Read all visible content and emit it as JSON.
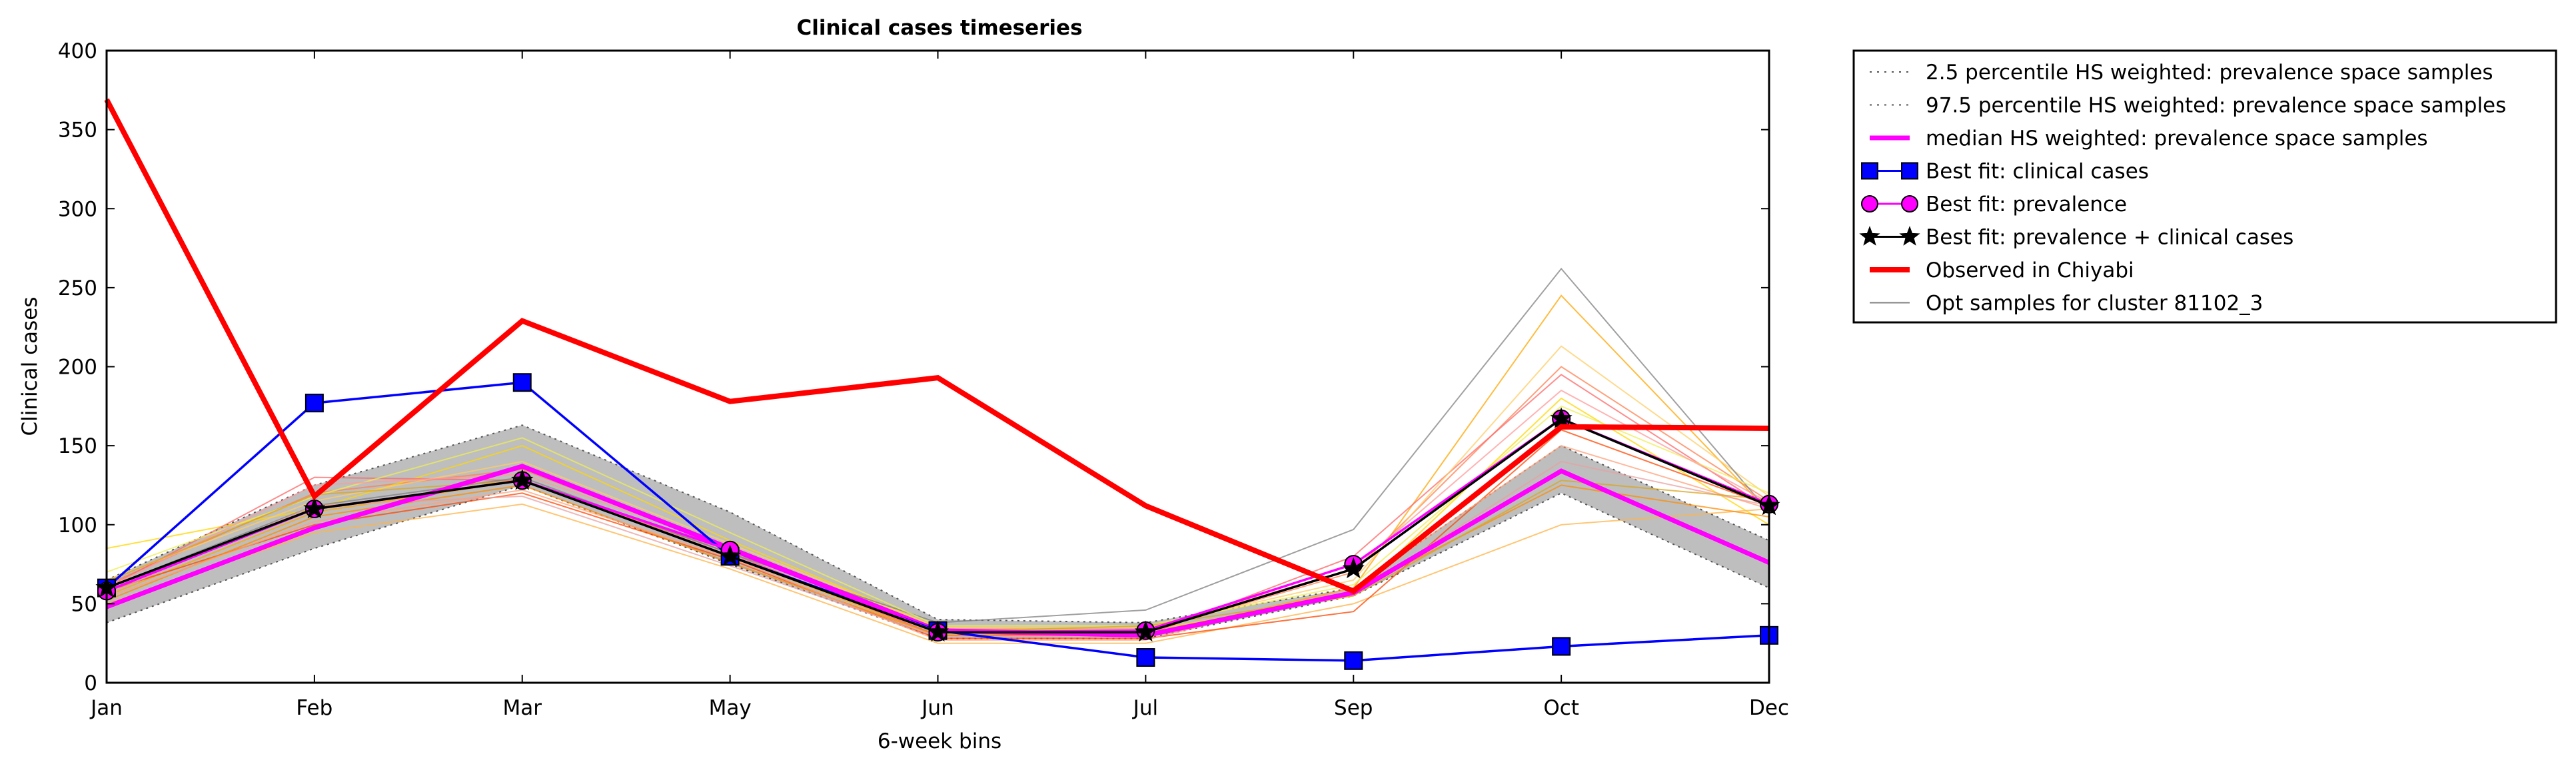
{
  "chart_data": {
    "type": "line",
    "title": "Clinical cases timeseries",
    "xlabel": "6-week bins",
    "ylabel": "Clinical cases",
    "categories": [
      "Jan",
      "Feb",
      "Mar",
      "May",
      "Jun",
      "Jul",
      "Sep",
      "Oct",
      "Dec"
    ],
    "yticks": [
      0,
      50,
      100,
      150,
      200,
      250,
      300,
      350,
      400
    ],
    "ylim": [
      0,
      400
    ],
    "grid": false,
    "legend_position": "outside-right",
    "band": {
      "lower_name": "2.5 percentile HS weighted: prevalence space samples",
      "upper_name": "97.5 percentile HS weighted: prevalence space samples",
      "lower": [
        38,
        85,
        125,
        75,
        28,
        28,
        55,
        120,
        60
      ],
      "upper": [
        65,
        125,
        163,
        108,
        40,
        38,
        60,
        150,
        90
      ],
      "fill_color": "#bebebe",
      "line_color": "#555555"
    },
    "series": [
      {
        "name": "median HS weighted: prevalence space samples",
        "values": [
          48,
          98,
          137,
          85,
          33,
          30,
          57,
          134,
          76
        ],
        "color": "#ff00ff",
        "style": "line"
      },
      {
        "name": "Best fit: clinical cases",
        "values": [
          60,
          177,
          190,
          80,
          33,
          16,
          14,
          23,
          30
        ],
        "color": "#0000ff",
        "style": "square"
      },
      {
        "name": "Best fit: prevalence",
        "values": [
          58,
          110,
          128,
          84,
          32,
          33,
          75,
          167,
          113
        ],
        "color": "#ff00ff",
        "style": "circle"
      },
      {
        "name": "Best fit: prevalence + clinical cases",
        "values": [
          60,
          110,
          128,
          80,
          32,
          32,
          72,
          167,
          112
        ],
        "color": "#000000",
        "style": "star"
      },
      {
        "name": "Observed in Chiyabi",
        "values": [
          369,
          118,
          229,
          178,
          193,
          112,
          58,
          162,
          161
        ],
        "color": "#ff0000",
        "style": "thick"
      }
    ],
    "samples_name": "Opt samples for cluster 81102_3",
    "samples_legend_color": "#808080",
    "samples": [
      {
        "color": "#ffa500",
        "values": [
          55,
          108,
          128,
          80,
          30,
          30,
          60,
          245,
          108
        ]
      },
      {
        "color": "#ff7f50",
        "values": [
          62,
          120,
          135,
          85,
          33,
          32,
          70,
          200,
          115
        ]
      },
      {
        "color": "#ffd700",
        "values": [
          85,
          110,
          150,
          90,
          35,
          33,
          55,
          180,
          100
        ]
      },
      {
        "color": "#ffb347",
        "values": [
          50,
          95,
          113,
          72,
          25,
          25,
          50,
          100,
          110
        ]
      },
      {
        "color": "#ff6666",
        "values": [
          60,
          130,
          128,
          82,
          30,
          30,
          80,
          195,
          110
        ]
      },
      {
        "color": "#ff4500",
        "values": [
          58,
          100,
          120,
          78,
          28,
          28,
          45,
          160,
          112
        ]
      },
      {
        "color": "#ffcc66",
        "values": [
          65,
          115,
          140,
          88,
          35,
          35,
          65,
          213,
          118
        ]
      },
      {
        "color": "#808080",
        "values": [
          60,
          112,
          130,
          82,
          38,
          46,
          97,
          262,
          108
        ]
      },
      {
        "color": "#ff8c00",
        "values": [
          52,
          105,
          125,
          76,
          30,
          30,
          58,
          125,
          105
        ]
      },
      {
        "color": "#eeee55",
        "values": [
          70,
          118,
          155,
          95,
          36,
          36,
          62,
          175,
          120
        ]
      },
      {
        "color": "#e8a0a0",
        "values": [
          56,
          112,
          118,
          74,
          29,
          29,
          56,
          140,
          112
        ]
      },
      {
        "color": "#ff9999",
        "values": [
          60,
          125,
          132,
          86,
          34,
          34,
          72,
          185,
          114
        ]
      },
      {
        "color": "#ffa07a",
        "values": [
          54,
          102,
          122,
          79,
          27,
          27,
          60,
          150,
          110
        ]
      },
      {
        "color": "#daa520",
        "values": [
          64,
          119,
          128,
          84,
          32,
          36,
          55,
          128,
          116
        ]
      }
    ]
  }
}
